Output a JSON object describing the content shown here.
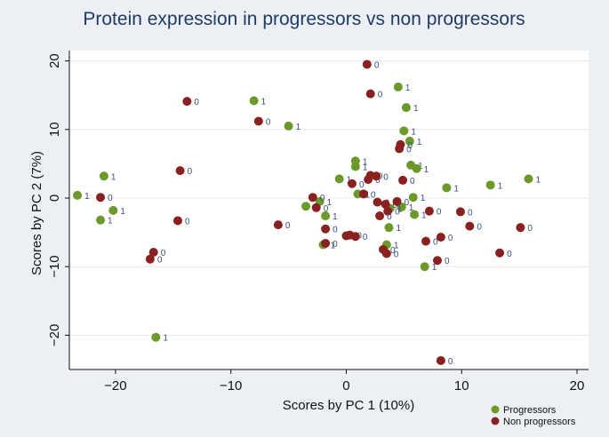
{
  "chart_data": {
    "type": "scatter",
    "title": "Protein expression in progressors vs non progressors",
    "xlabel": "Scores by PC 1 (10%)",
    "ylabel": "Scores by PC 2 (7%)",
    "xlim": [
      -24,
      21
    ],
    "ylim": [
      -25,
      21.5
    ],
    "xticks": [
      -20,
      -10,
      0,
      10,
      20
    ],
    "yticks": [
      -20,
      -10,
      0,
      10,
      20
    ],
    "grid": true,
    "legend_position": "bottom-right",
    "series": [
      {
        "name": "Progressors",
        "marker_label": "1",
        "color": "#6c9a2a",
        "points": [
          [
            -16.5,
            -20.3
          ],
          [
            -23.3,
            0.4
          ],
          [
            -21.0,
            3.2
          ],
          [
            -20.2,
            -1.8
          ],
          [
            -21.3,
            -3.2
          ],
          [
            -8.0,
            14.2
          ],
          [
            -5.0,
            10.5
          ],
          [
            -3.5,
            -1.2
          ],
          [
            -2.3,
            -0.5
          ],
          [
            -2.0,
            -6.8
          ],
          [
            -1.8,
            -2.6
          ],
          [
            -0.6,
            2.8
          ],
          [
            0.8,
            5.4
          ],
          [
            0.8,
            4.6
          ],
          [
            1.0,
            0.6
          ],
          [
            4.5,
            16.2
          ],
          [
            5.2,
            13.2
          ],
          [
            5.0,
            9.8
          ],
          [
            5.5,
            8.3
          ],
          [
            5.6,
            4.8
          ],
          [
            6.1,
            4.3
          ],
          [
            5.8,
            0.1
          ],
          [
            5.9,
            -2.4
          ],
          [
            4.8,
            -1.3
          ],
          [
            3.8,
            -1.5
          ],
          [
            3.5,
            -6.8
          ],
          [
            3.7,
            -4.3
          ],
          [
            6.8,
            -10.0
          ],
          [
            8.7,
            1.5
          ],
          [
            12.5,
            1.9
          ],
          [
            15.8,
            2.8
          ]
        ]
      },
      {
        "name": "Non progressors",
        "marker_label": "0",
        "color": "#8a2020",
        "points": [
          [
            1.8,
            19.5
          ],
          [
            2.1,
            15.2
          ],
          [
            -13.8,
            14.1
          ],
          [
            -7.6,
            11.2
          ],
          [
            -14.4,
            4.0
          ],
          [
            -21.3,
            0.1
          ],
          [
            -14.6,
            -3.3
          ],
          [
            -5.9,
            -3.9
          ],
          [
            -16.7,
            -7.9
          ],
          [
            -17.0,
            -8.9
          ],
          [
            4.7,
            7.8
          ],
          [
            4.6,
            7.2
          ],
          [
            2.1,
            3.3
          ],
          [
            1.9,
            2.7
          ],
          [
            2.6,
            3.2
          ],
          [
            1.5,
            0.6
          ],
          [
            0.5,
            2.1
          ],
          [
            -2.9,
            0.1
          ],
          [
            -2.6,
            -1.4
          ],
          [
            2.7,
            -0.6
          ],
          [
            3.4,
            -0.9
          ],
          [
            4.4,
            -0.5
          ],
          [
            3.6,
            -1.9
          ],
          [
            2.9,
            -2.6
          ],
          [
            4.9,
            2.6
          ],
          [
            -1.8,
            -4.5
          ],
          [
            0.0,
            -5.5
          ],
          [
            0.3,
            -5.4
          ],
          [
            0.8,
            -5.6
          ],
          [
            -1.8,
            -6.6
          ],
          [
            3.2,
            -7.5
          ],
          [
            3.5,
            -8.1
          ],
          [
            7.2,
            -1.9
          ],
          [
            9.9,
            -2.0
          ],
          [
            10.7,
            -4.1
          ],
          [
            8.2,
            -5.7
          ],
          [
            6.9,
            -6.3
          ],
          [
            7.9,
            -9.1
          ],
          [
            13.3,
            -8.0
          ],
          [
            15.1,
            -4.3
          ],
          [
            8.2,
            -23.7
          ]
        ]
      }
    ]
  }
}
